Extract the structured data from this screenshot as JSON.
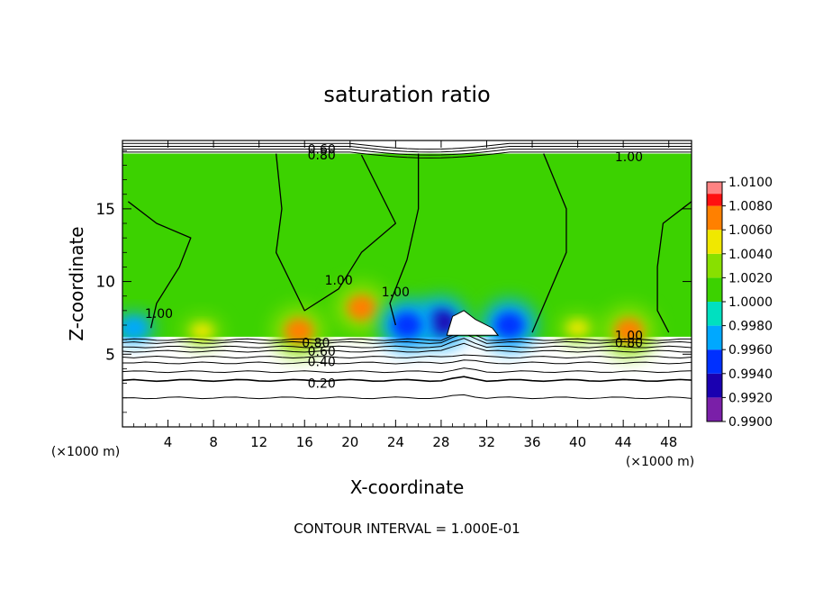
{
  "chart_data": {
    "type": "heatmap",
    "title": "saturation ratio",
    "xlabel": "X-coordinate",
    "ylabel": "Z-coordinate",
    "x_unit": "(×1000 m)",
    "z_unit": "(×1000 m)",
    "xlim": [
      0,
      50
    ],
    "ylim": [
      0,
      19.7
    ],
    "x_ticks": [
      4,
      8,
      12,
      16,
      20,
      24,
      28,
      32,
      36,
      40,
      44,
      48
    ],
    "x_tick_labels": [
      "4",
      "8",
      "12",
      "16",
      "20",
      "24",
      "28",
      "32",
      "36",
      "40",
      "44",
      "48"
    ],
    "y_ticks": [
      5,
      10,
      15
    ],
    "y_tick_labels": [
      "5",
      "10",
      "15"
    ],
    "footer": "CONTOUR INTERVAL = 1.000E-01",
    "colorbar": {
      "levels": [
        0.99,
        0.992,
        0.994,
        0.996,
        0.998,
        1.0,
        1.002,
        1.004,
        1.006,
        1.008,
        1.01
      ],
      "labels": [
        "0.9900",
        "0.9920",
        "0.9940",
        "0.9960",
        "0.9980",
        "1.0000",
        "1.0020",
        "1.0040",
        "1.0060",
        "1.0080",
        "1.0100"
      ],
      "colors": [
        "#7a1fa8",
        "#1a00b0",
        "#0030ff",
        "#00a8ff",
        "#00e0c0",
        "#3cd200",
        "#88e000",
        "#f0e800",
        "#ff8000",
        "#ff1010",
        "#ff9090"
      ]
    },
    "filled_region": {
      "x_range": [
        0,
        50
      ],
      "z_range": [
        6.2,
        18.8
      ],
      "background_value": 1.0
    },
    "blobs": [
      {
        "x": 21,
        "z": 8.2,
        "value": 1.006
      },
      {
        "x": 15.5,
        "z": 6.6,
        "value": 1.006
      },
      {
        "x": 28,
        "z": 7.2,
        "value": 0.992
      },
      {
        "x": 25,
        "z": 7.0,
        "value": 0.994
      },
      {
        "x": 34,
        "z": 7.0,
        "value": 0.994
      },
      {
        "x": 7,
        "z": 6.6,
        "value": 1.004
      },
      {
        "x": 40,
        "z": 6.8,
        "value": 1.004
      },
      {
        "x": 44.5,
        "z": 6.6,
        "value": 1.006
      },
      {
        "x": 1,
        "z": 6.8,
        "value": 0.996
      }
    ],
    "contour_labels": [
      {
        "text": "0.60",
        "x": 17.5,
        "z": 19.1
      },
      {
        "text": "0.80",
        "x": 17.5,
        "z": 18.7
      },
      {
        "text": "1.00",
        "x": 44.5,
        "z": 18.6
      },
      {
        "text": "1.00",
        "x": 3.2,
        "z": 7.8
      },
      {
        "text": "1.00",
        "x": 19.0,
        "z": 10.1
      },
      {
        "text": "1.00",
        "x": 24.0,
        "z": 9.3
      },
      {
        "text": "1.00",
        "x": 44.5,
        "z": 6.3
      },
      {
        "text": "0.80",
        "x": 17.0,
        "z": 5.8
      },
      {
        "text": "0.60",
        "x": 17.5,
        "z": 5.2
      },
      {
        "text": "0.40",
        "x": 17.5,
        "z": 4.5
      },
      {
        "text": "0.20",
        "x": 17.5,
        "z": 3.0
      },
      {
        "text": "0.80",
        "x": 44.5,
        "z": 5.8
      }
    ],
    "lower_contours": [
      0.9,
      0.8,
      0.7,
      0.6,
      0.5,
      0.4,
      0.3,
      0.2,
      0.1
    ]
  }
}
